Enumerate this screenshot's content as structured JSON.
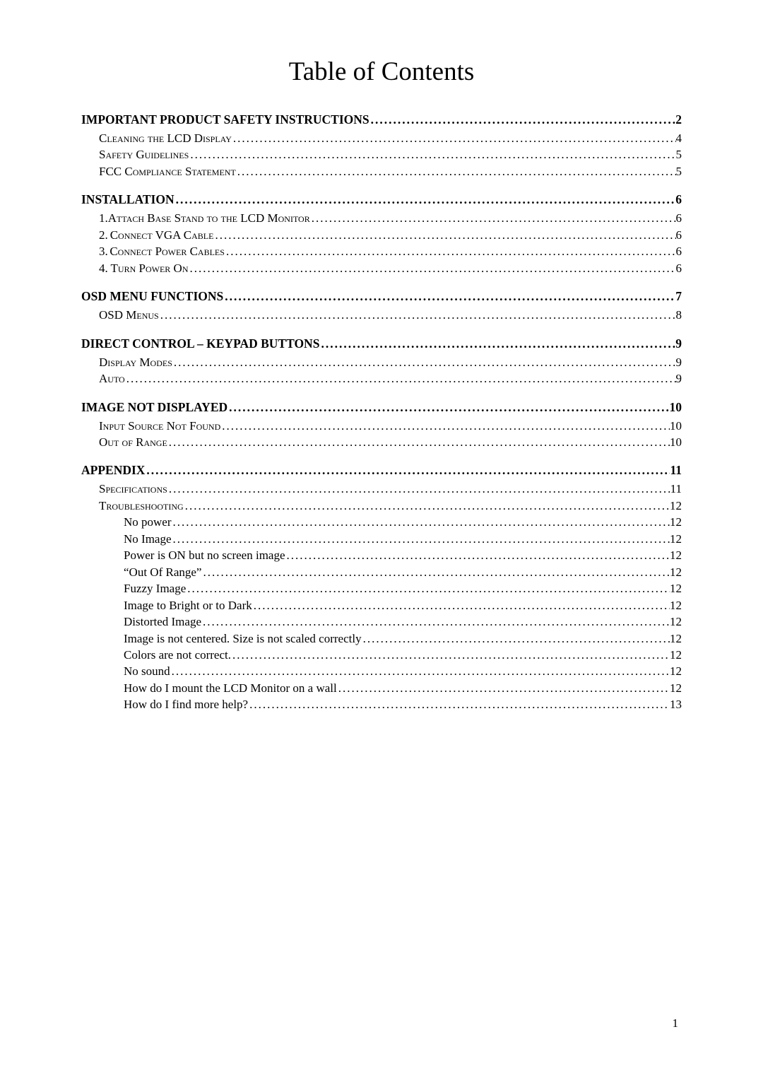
{
  "title": "Table of Contents",
  "page_number": "1",
  "toc": [
    {
      "level": 1,
      "label": "IMPORTANT PRODUCT SAFETY INSTRUCTIONS",
      "page": "2"
    },
    {
      "level": 2,
      "label": "Cleaning the LCD Display",
      "page": "4"
    },
    {
      "level": 2,
      "label": "Safety Guidelines",
      "page": "5"
    },
    {
      "level": 2,
      "label": "FCC Compliance Statement",
      "page": "5"
    },
    {
      "level": 1,
      "label": "INSTALLATION",
      "page": "6"
    },
    {
      "level": 2,
      "num": "1.",
      "label": "Attach Base Stand to the LCD Monitor",
      "page": "6"
    },
    {
      "level": 2,
      "num": "2.",
      "label": "Connect VGA Cable",
      "page": "6"
    },
    {
      "level": 2,
      "num": "3.",
      "label": "Connect Power Cables",
      "page": "6"
    },
    {
      "level": 2,
      "num": "4.",
      "label": "Turn Power On",
      "page": "6"
    },
    {
      "level": 1,
      "label": "OSD MENU FUNCTIONS",
      "page": "7"
    },
    {
      "level": 2,
      "label": "OSD Menus",
      "page": "8"
    },
    {
      "level": 1,
      "label": "DIRECT CONTROL – KEYPAD BUTTONS",
      "page": "9"
    },
    {
      "level": 2,
      "label": "Display Modes",
      "page": "9"
    },
    {
      "level": 2,
      "label": "Auto",
      "page": "9"
    },
    {
      "level": 1,
      "label": "IMAGE NOT DISPLAYED",
      "page": "10"
    },
    {
      "level": 2,
      "label": "Input Source Not Found",
      "page": "10"
    },
    {
      "level": 2,
      "label": "Out of Range",
      "page": "10"
    },
    {
      "level": 1,
      "label": "APPENDIX",
      "page": "11"
    },
    {
      "level": 2,
      "label": "Specifications",
      "page": "11"
    },
    {
      "level": 2,
      "label": "Troubleshooting",
      "page": "12"
    },
    {
      "level": 3,
      "label": "No power",
      "page": "12"
    },
    {
      "level": 3,
      "label": "No Image",
      "page": "12"
    },
    {
      "level": 3,
      "label": "Power is ON but no screen image",
      "page": "12"
    },
    {
      "level": 3,
      "label": "“Out Of Range”",
      "page": "12"
    },
    {
      "level": 3,
      "label": "Fuzzy Image",
      "page": "12"
    },
    {
      "level": 3,
      "label": "Image to Bright or to Dark",
      "page": "12"
    },
    {
      "level": 3,
      "label": "Distorted Image",
      "page": "12"
    },
    {
      "level": 3,
      "label": "Image is not centered. Size is not scaled correctly",
      "page": "12"
    },
    {
      "level": 3,
      "label": "Colors are not correct.",
      "page": "12"
    },
    {
      "level": 3,
      "label": "No sound",
      "page": "12"
    },
    {
      "level": 3,
      "label": "How do I mount the LCD Monitor on a wall",
      "page": "12"
    },
    {
      "level": 3,
      "label": "How do I find more help?",
      "page": "13"
    }
  ]
}
